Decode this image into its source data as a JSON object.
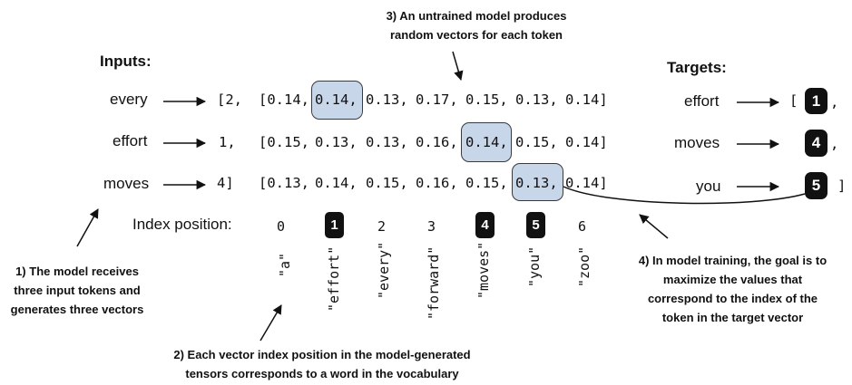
{
  "headings": {
    "inputs": "Inputs:",
    "targets": "Targets:",
    "index_position": "Index position:"
  },
  "inputs": {
    "words": [
      "every",
      "effort",
      "moves"
    ],
    "ids": [
      "[2,",
      "1,",
      "4]"
    ]
  },
  "vectors": [
    [
      "[0.14,",
      "0.14,",
      "0.13,",
      "0.17,",
      "0.15,",
      "0.13,",
      "0.14]"
    ],
    [
      "[0.15,",
      "0.13,",
      "0.13,",
      "0.16,",
      "0.14,",
      "0.15,",
      "0.14]"
    ],
    [
      "[0.13,",
      "0.14,",
      "0.15,",
      "0.16,",
      "0.15,",
      "0.13,",
      "0.14]"
    ]
  ],
  "highlighted_cells": [
    [
      0,
      1
    ],
    [
      1,
      4
    ],
    [
      2,
      5
    ]
  ],
  "targets": {
    "words": [
      "effort",
      "moves",
      "you"
    ],
    "ids": [
      "1",
      "4",
      "5"
    ],
    "open_bracket": "[",
    "comma": ",",
    "close_bracket": "]"
  },
  "index_positions": [
    "0",
    "1",
    "2",
    "3",
    "4",
    "5",
    "6"
  ],
  "highlighted_indices": [
    1,
    4,
    5
  ],
  "vocabulary": [
    "\"a\"",
    "\"effort\"",
    "\"every\"",
    "\"forward\"",
    "\"moves\"",
    "\"you\"",
    "\"zoo\""
  ],
  "notes": {
    "note1": [
      "1) The model receives",
      "three input tokens and",
      "generates three vectors"
    ],
    "note2": [
      "2) Each vector index position in the model-generated",
      "tensors corresponds to a word in the vocabulary"
    ],
    "note3": [
      "3) An untrained model produces",
      "random vectors for each token"
    ],
    "note4": [
      "4) In model training, the goal is to",
      "maximize the values that",
      "correspond to the index of the",
      "token in the target vector"
    ]
  },
  "colors": {
    "highlight_fill": "#c8d6ea",
    "badge_fill": "#111111",
    "badge_text": "#ffffff"
  }
}
